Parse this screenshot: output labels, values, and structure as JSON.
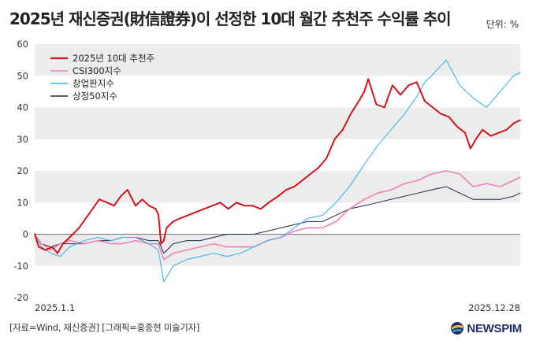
{
  "header": {
    "title": "2025년 재신증권(財信證券)이 선정한 10대 월간 추천주 수익률 추이",
    "unit": "단위: %"
  },
  "footer": {
    "source": "[자료=Wind, 재신증권] [그래픽=홍종현 미술기자]",
    "logo_text": "NEWSPIM"
  },
  "colors": {
    "picks": "#d5121b",
    "csi300": "#f07fb3",
    "chinext": "#3cb4e6",
    "sse50": "#1b2a4a",
    "band": "#ececec",
    "logo": "#1e2f66"
  },
  "chart_data": {
    "type": "line",
    "title": "2025년 재신증권(財信證券)이 선정한 10대 월간 추천주 수익률 추이",
    "ylabel": "단위: %",
    "ylim": [
      -20,
      60
    ],
    "yticks": [
      "60",
      "50",
      "40",
      "30",
      "20",
      "10",
      "0",
      "-10",
      "-20"
    ],
    "x_start_label": "2025.1.1",
    "x_end_label": "2025.12.28",
    "x_range": [
      "2025-01-01",
      "2025-12-28"
    ],
    "grid": "alternating horizontal bands",
    "legend_position": "top-left",
    "series": [
      {
        "name": "2025년 10대 추천주",
        "points": [
          [
            "2025-01-01",
            0
          ],
          [
            "2025-01-04",
            -4
          ],
          [
            "2025-01-09",
            -5
          ],
          [
            "2025-01-14",
            -4
          ],
          [
            "2025-01-18",
            -6
          ],
          [
            "2025-01-22",
            -3
          ],
          [
            "2025-01-27",
            -1
          ],
          [
            "2025-02-03",
            2
          ],
          [
            "2025-02-08",
            5
          ],
          [
            "2025-02-13",
            8
          ],
          [
            "2025-02-18",
            11
          ],
          [
            "2025-02-24",
            10
          ],
          [
            "2025-03-01",
            9
          ],
          [
            "2025-03-06",
            12
          ],
          [
            "2025-03-11",
            14
          ],
          [
            "2025-03-17",
            9
          ],
          [
            "2025-03-22",
            11
          ],
          [
            "2025-03-27",
            9
          ],
          [
            "2025-04-01",
            8
          ],
          [
            "2025-04-03",
            6
          ],
          [
            "2025-04-05",
            -3
          ],
          [
            "2025-04-07",
            -2
          ],
          [
            "2025-04-09",
            2
          ],
          [
            "2025-04-14",
            4
          ],
          [
            "2025-04-19",
            5
          ],
          [
            "2025-04-25",
            6
          ],
          [
            "2025-05-01",
            7
          ],
          [
            "2025-05-07",
            8
          ],
          [
            "2025-05-13",
            9
          ],
          [
            "2025-05-19",
            10
          ],
          [
            "2025-05-25",
            8
          ],
          [
            "2025-05-31",
            10
          ],
          [
            "2025-06-06",
            9
          ],
          [
            "2025-06-12",
            9
          ],
          [
            "2025-06-18",
            8
          ],
          [
            "2025-06-24",
            10
          ],
          [
            "2025-07-01",
            12
          ],
          [
            "2025-07-07",
            14
          ],
          [
            "2025-07-13",
            15
          ],
          [
            "2025-07-19",
            17
          ],
          [
            "2025-07-25",
            19
          ],
          [
            "2025-07-31",
            21
          ],
          [
            "2025-08-06",
            24
          ],
          [
            "2025-08-12",
            30
          ],
          [
            "2025-08-18",
            33
          ],
          [
            "2025-08-24",
            38
          ],
          [
            "2025-08-30",
            42
          ],
          [
            "2025-09-03",
            45
          ],
          [
            "2025-09-06",
            49
          ],
          [
            "2025-09-12",
            41
          ],
          [
            "2025-09-18",
            40
          ],
          [
            "2025-09-24",
            47
          ],
          [
            "2025-09-30",
            44
          ],
          [
            "2025-10-06",
            47
          ],
          [
            "2025-10-12",
            48
          ],
          [
            "2025-10-18",
            42
          ],
          [
            "2025-10-24",
            40
          ],
          [
            "2025-10-30",
            38
          ],
          [
            "2025-11-05",
            37
          ],
          [
            "2025-11-11",
            34
          ],
          [
            "2025-11-17",
            32
          ],
          [
            "2025-11-21",
            27
          ],
          [
            "2025-11-25",
            30
          ],
          [
            "2025-11-30",
            33
          ],
          [
            "2025-12-06",
            31
          ],
          [
            "2025-12-12",
            32
          ],
          [
            "2025-12-18",
            33
          ],
          [
            "2025-12-23",
            35
          ],
          [
            "2025-12-28",
            36
          ]
        ]
      },
      {
        "name": "CSI300지수",
        "points": [
          [
            "2025-01-01",
            0
          ],
          [
            "2025-01-06",
            -3
          ],
          [
            "2025-01-13",
            -5
          ],
          [
            "2025-01-20",
            -3
          ],
          [
            "2025-01-27",
            -2
          ],
          [
            "2025-02-07",
            -3
          ],
          [
            "2025-02-17",
            -2
          ],
          [
            "2025-02-27",
            -3
          ],
          [
            "2025-03-07",
            -3
          ],
          [
            "2025-03-17",
            -2
          ],
          [
            "2025-03-27",
            -3
          ],
          [
            "2025-04-03",
            -3
          ],
          [
            "2025-04-07",
            -8
          ],
          [
            "2025-04-14",
            -6
          ],
          [
            "2025-04-24",
            -5
          ],
          [
            "2025-05-04",
            -4
          ],
          [
            "2025-05-14",
            -3
          ],
          [
            "2025-05-24",
            -4
          ],
          [
            "2025-06-03",
            -4
          ],
          [
            "2025-06-13",
            -4
          ],
          [
            "2025-06-23",
            -2
          ],
          [
            "2025-07-03",
            -1
          ],
          [
            "2025-07-13",
            1
          ],
          [
            "2025-07-23",
            2
          ],
          [
            "2025-08-03",
            2
          ],
          [
            "2025-08-13",
            4
          ],
          [
            "2025-08-23",
            8
          ],
          [
            "2025-09-03",
            11
          ],
          [
            "2025-09-13",
            13
          ],
          [
            "2025-09-23",
            14
          ],
          [
            "2025-10-03",
            16
          ],
          [
            "2025-10-13",
            17
          ],
          [
            "2025-10-23",
            19
          ],
          [
            "2025-11-03",
            20
          ],
          [
            "2025-11-13",
            19
          ],
          [
            "2025-11-23",
            15
          ],
          [
            "2025-12-03",
            16
          ],
          [
            "2025-12-13",
            15
          ],
          [
            "2025-12-23",
            17
          ],
          [
            "2025-12-28",
            18
          ]
        ]
      },
      {
        "name": "창업판지수",
        "points": [
          [
            "2025-01-01",
            0
          ],
          [
            "2025-01-06",
            -4
          ],
          [
            "2025-01-13",
            -6
          ],
          [
            "2025-01-20",
            -7
          ],
          [
            "2025-01-27",
            -4
          ],
          [
            "2025-02-07",
            -2
          ],
          [
            "2025-02-17",
            -1
          ],
          [
            "2025-02-27",
            -2
          ],
          [
            "2025-03-07",
            -1
          ],
          [
            "2025-03-17",
            -1
          ],
          [
            "2025-03-27",
            -3
          ],
          [
            "2025-04-03",
            -5
          ],
          [
            "2025-04-07",
            -15
          ],
          [
            "2025-04-14",
            -10
          ],
          [
            "2025-04-24",
            -8
          ],
          [
            "2025-05-04",
            -7
          ],
          [
            "2025-05-14",
            -6
          ],
          [
            "2025-05-24",
            -7
          ],
          [
            "2025-06-03",
            -6
          ],
          [
            "2025-06-13",
            -4
          ],
          [
            "2025-06-23",
            -2
          ],
          [
            "2025-07-03",
            -1
          ],
          [
            "2025-07-13",
            2
          ],
          [
            "2025-07-23",
            5
          ],
          [
            "2025-08-03",
            6
          ],
          [
            "2025-08-13",
            10
          ],
          [
            "2025-08-23",
            15
          ],
          [
            "2025-09-03",
            22
          ],
          [
            "2025-09-13",
            28
          ],
          [
            "2025-09-23",
            33
          ],
          [
            "2025-10-03",
            38
          ],
          [
            "2025-10-13",
            44
          ],
          [
            "2025-10-18",
            48
          ],
          [
            "2025-10-23",
            50
          ],
          [
            "2025-11-03",
            55
          ],
          [
            "2025-11-13",
            47
          ],
          [
            "2025-11-23",
            43
          ],
          [
            "2025-12-03",
            40
          ],
          [
            "2025-12-13",
            45
          ],
          [
            "2025-12-23",
            50
          ],
          [
            "2025-12-28",
            51
          ]
        ]
      },
      {
        "name": "상정50지수",
        "points": [
          [
            "2025-01-01",
            0
          ],
          [
            "2025-01-06",
            -3
          ],
          [
            "2025-01-13",
            -4
          ],
          [
            "2025-01-20",
            -3
          ],
          [
            "2025-01-27",
            -3
          ],
          [
            "2025-02-07",
            -3
          ],
          [
            "2025-02-17",
            -2
          ],
          [
            "2025-02-27",
            -2
          ],
          [
            "2025-03-07",
            -1
          ],
          [
            "2025-03-17",
            -1
          ],
          [
            "2025-03-27",
            -2
          ],
          [
            "2025-04-03",
            -2
          ],
          [
            "2025-04-07",
            -6
          ],
          [
            "2025-04-14",
            -3
          ],
          [
            "2025-04-24",
            -2
          ],
          [
            "2025-05-04",
            -2
          ],
          [
            "2025-05-14",
            -1
          ],
          [
            "2025-05-24",
            0
          ],
          [
            "2025-06-03",
            0
          ],
          [
            "2025-06-13",
            0
          ],
          [
            "2025-06-23",
            1
          ],
          [
            "2025-07-03",
            2
          ],
          [
            "2025-07-13",
            3
          ],
          [
            "2025-07-23",
            4
          ],
          [
            "2025-08-03",
            4
          ],
          [
            "2025-08-13",
            6
          ],
          [
            "2025-08-23",
            8
          ],
          [
            "2025-09-03",
            9
          ],
          [
            "2025-09-13",
            10
          ],
          [
            "2025-09-23",
            11
          ],
          [
            "2025-10-03",
            12
          ],
          [
            "2025-10-13",
            13
          ],
          [
            "2025-10-23",
            14
          ],
          [
            "2025-11-03",
            15
          ],
          [
            "2025-11-13",
            13
          ],
          [
            "2025-11-23",
            11
          ],
          [
            "2025-12-03",
            11
          ],
          [
            "2025-12-13",
            11
          ],
          [
            "2025-12-23",
            12
          ],
          [
            "2025-12-28",
            13
          ]
        ]
      }
    ]
  }
}
